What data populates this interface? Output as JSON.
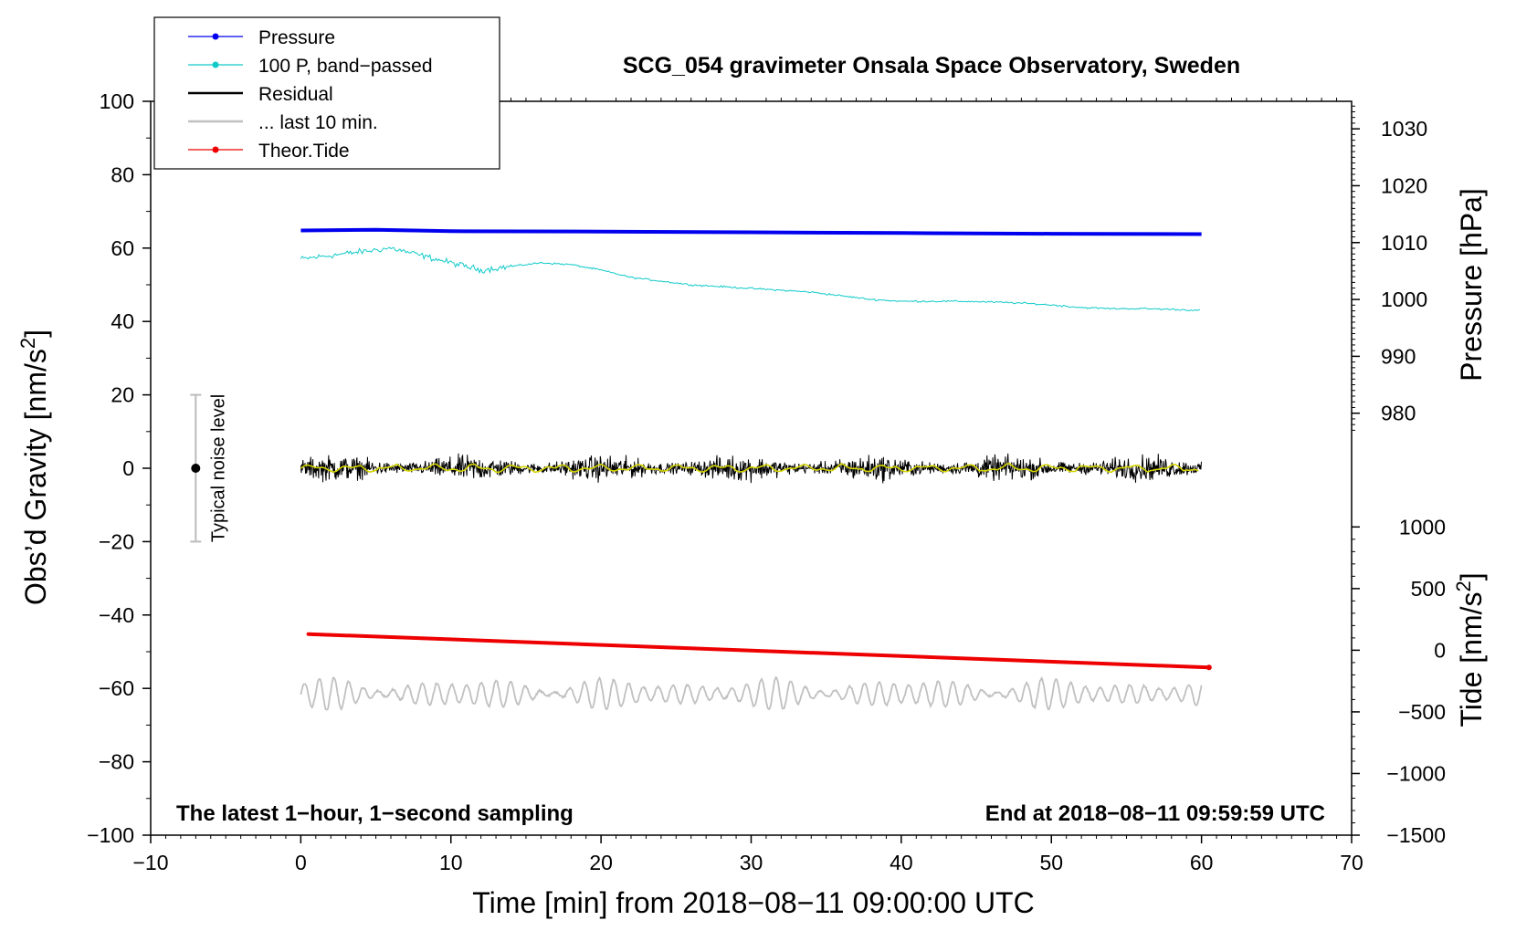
{
  "chart_data": {
    "type": "line",
    "title": "SCG_054 gravimeter Onsala Space Observatory, Sweden",
    "xlabel": "Time [min] from 2018−08−11 09:00:00 UTC",
    "xlim": [
      -10,
      70
    ],
    "x_ticks": [
      -10,
      0,
      10,
      20,
      30,
      40,
      50,
      60,
      70
    ],
    "x_tick_labels": [
      "−10",
      "0",
      "10",
      "20",
      "30",
      "40",
      "50",
      "60",
      "70"
    ],
    "left_axis": {
      "label_main": "Obs’d Gravity [nm/s",
      "label_sup": "2",
      "label_end": "]",
      "ylim": [
        -100,
        100
      ],
      "ticks": [
        -100,
        -80,
        -60,
        -40,
        -20,
        0,
        20,
        40,
        60,
        80,
        100
      ],
      "tick_labels": [
        "−100",
        "−80",
        "−60",
        "−40",
        "−20",
        "0",
        "20",
        "40",
        "60",
        "80",
        "100"
      ]
    },
    "pressure_axis": {
      "label": "Pressure [hPa]",
      "ticks": [
        980,
        990,
        1000,
        1010,
        1020,
        1030
      ],
      "tick_labels": [
        "980",
        "990",
        "1000",
        "1010",
        "1020",
        "1030"
      ],
      "gravity_equiv": [
        15,
        30.5,
        46,
        61.5,
        77,
        92.5
      ]
    },
    "tide_axis": {
      "label_main": "Tide [nm/s",
      "label_sup": "2",
      "label_end": "]",
      "ticks": [
        -1500,
        -1000,
        -500,
        0,
        500,
        1000
      ],
      "tick_labels": [
        "−1500",
        "−1000",
        "−500",
        "0",
        "500",
        "1000"
      ],
      "gravity_equiv": [
        -100,
        -83.2,
        -66.4,
        -49.6,
        -32.8,
        -16
      ]
    },
    "series": [
      {
        "name": "Pressure",
        "color": "#0000ee",
        "style": "thick-line",
        "x": [
          0,
          5,
          10,
          20,
          30,
          40,
          50,
          60
        ],
        "y": [
          64.8,
          65.0,
          64.6,
          64.5,
          64.3,
          64.1,
          63.9,
          63.8
        ]
      },
      {
        "name": "100 P, band−passed",
        "color": "#11c9c9",
        "style": "thin-line",
        "x": [
          0,
          2,
          4,
          6,
          8,
          10,
          12,
          14,
          16,
          18,
          20,
          22,
          24,
          26,
          28,
          30,
          32,
          34,
          36,
          38,
          40,
          42,
          44,
          46,
          48,
          50,
          52,
          54,
          56,
          58,
          60
        ],
        "y": [
          57,
          58,
          59,
          60,
          58,
          56,
          54,
          55,
          56,
          55.5,
          54,
          52,
          51,
          50,
          49.5,
          49,
          48.5,
          48,
          47,
          46,
          45.5,
          45.5,
          45.5,
          45.3,
          45,
          44.5,
          43.8,
          43.5,
          43.5,
          43.3,
          43
        ]
      },
      {
        "name": "Residual",
        "color": "#000000",
        "style": "noise",
        "x": [
          0,
          60
        ],
        "y": [
          0,
          0
        ],
        "amplitude": 5
      },
      {
        "name": "... last 10 min.",
        "color": "#c0c0c0",
        "style": "oscillation",
        "x": [
          0,
          60
        ],
        "center": -61.5,
        "amplitude": 4.5
      },
      {
        "name": "Theor.Tide",
        "color": "#ee0000",
        "style": "thick-line",
        "x": [
          0.5,
          60.5
        ],
        "y": [
          -45.2,
          -54.3
        ]
      }
    ],
    "smoothed_residual": {
      "color": "#d4d400",
      "center": 0
    },
    "noise_bar": {
      "label": "Typical noise level",
      "x": -7,
      "center": 0,
      "range": [
        -20,
        20
      ]
    },
    "notes": {
      "left": "The latest 1−hour, 1−second sampling",
      "right": "End at 2018−08−11 09:59:59 UTC"
    }
  }
}
